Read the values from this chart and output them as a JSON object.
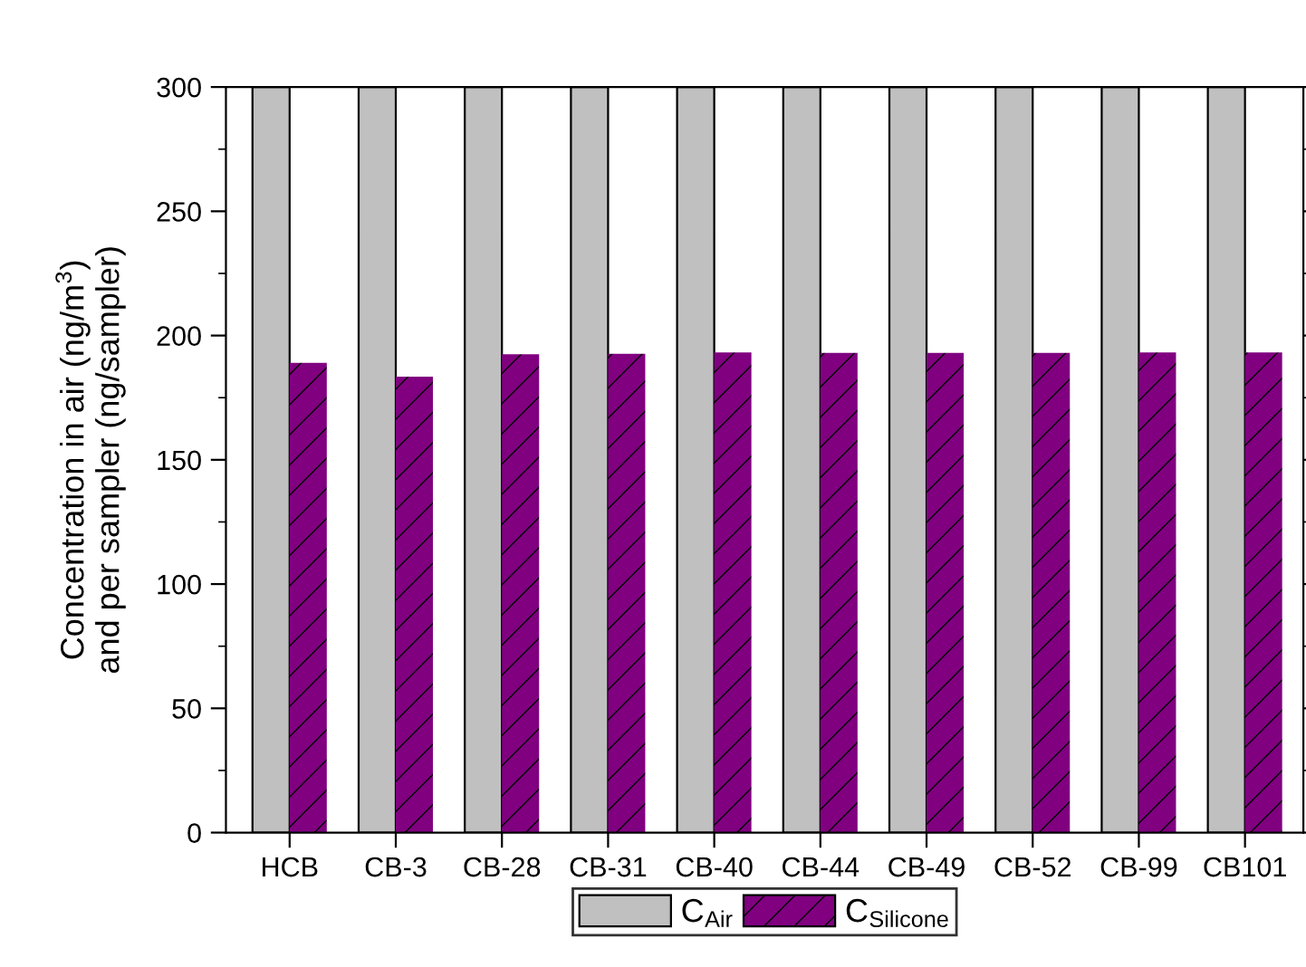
{
  "chart_data": {
    "type": "bar",
    "ylabel": "Concentration in air (ng/m$^{3}$)\nand per sampler (ng/sampler)",
    "categories": [
      "HCB",
      "CB-3",
      "CB-28",
      "CB-31",
      "CB-40",
      "CB-44",
      "CB-49",
      "CB-52",
      "CB-99",
      "CB101"
    ],
    "series": [
      {
        "name": "C$_{Air}$",
        "color": "#c0c0c0",
        "values": [
          300,
          300,
          300,
          300,
          300,
          300,
          300,
          300,
          300,
          300
        ]
      },
      {
        "name": "C$_{Silicone}$",
        "color": "#800080",
        "values": [
          189,
          183.5,
          192.5,
          192.7,
          193.2,
          193,
          193,
          193,
          193.2,
          193.2
        ]
      }
    ],
    "ylim": [
      0,
      300
    ],
    "yticks": [
      0,
      50,
      100,
      150,
      200,
      250,
      300
    ],
    "grid": false,
    "legend": "bottom"
  }
}
